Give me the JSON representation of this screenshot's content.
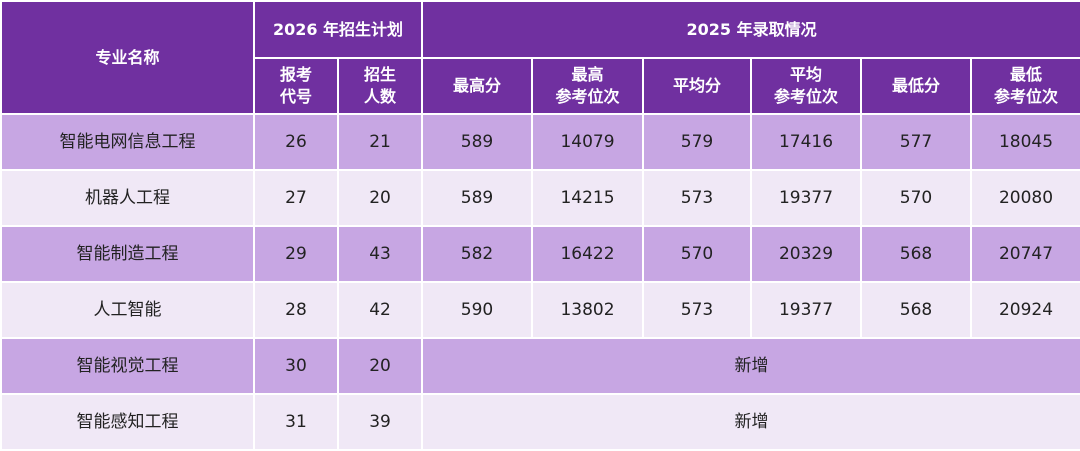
{
  "header": {
    "name": "专业名称",
    "plan": "2026 年招生计划",
    "admission": "2025 年录取情况",
    "columns": [
      "报考\n代号",
      "招生\n人数",
      "最高分",
      "最高\n参考位次",
      "平均分",
      "平均\n参考位次",
      "最低分",
      "最低\n参考位次"
    ]
  },
  "table": {
    "rows": [
      [
        "智能电网信息工程",
        26,
        21,
        589,
        14079,
        579,
        17416,
        577,
        18045
      ],
      [
        "机器人工程",
        27,
        20,
        589,
        14215,
        573,
        19377,
        570,
        20080
      ],
      [
        "智能制造工程",
        29,
        43,
        582,
        16422,
        570,
        20329,
        568,
        20747
      ],
      [
        "人工智能",
        28,
        42,
        590,
        13802,
        573,
        19377,
        568,
        20924
      ],
      [
        "智能视觉工程",
        30,
        20,
        "新增"
      ],
      [
        "智能感知工程",
        31,
        39,
        "新增"
      ]
    ]
  }
}
